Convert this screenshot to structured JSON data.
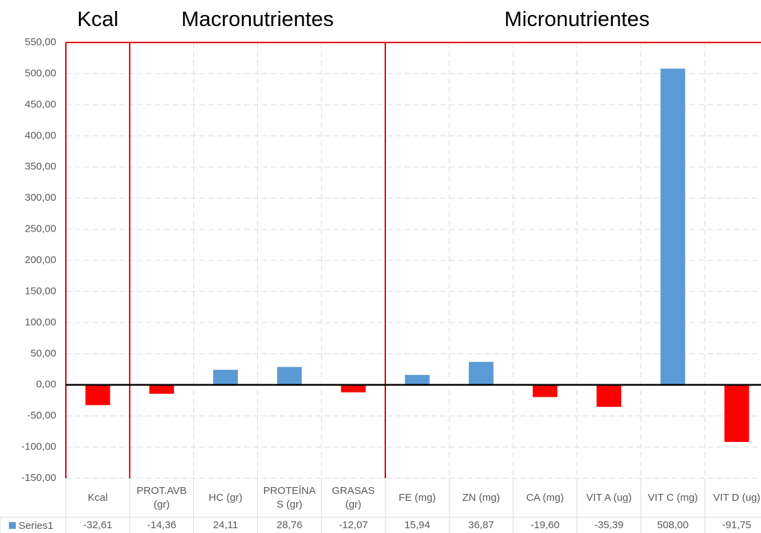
{
  "chart_data": {
    "type": "bar",
    "groups": [
      {
        "label": "Kcal"
      },
      {
        "label": "Macronutrientes"
      },
      {
        "label": "Micronutrientes"
      }
    ],
    "categories": [
      "Kcal",
      "PROT.AVB (gr)",
      "HC (gr)",
      "PROTEÍNA S (gr)",
      "GRASAS (gr)",
      "FE (mg)",
      "ZN (mg)",
      "CA (mg)",
      "VIT A (ug)",
      "VIT C (mg)",
      "VIT D (ug)"
    ],
    "series": [
      {
        "name": "Series1",
        "color": "#5b9bd5",
        "negative_color": "#ff0000",
        "values": [
          -32.61,
          -14.36,
          24.11,
          28.76,
          -12.07,
          15.94,
          36.87,
          -19.6,
          -35.39,
          508,
          -91.75
        ],
        "value_labels": [
          "-32,61",
          "-14,36",
          "24,11",
          "28,76",
          "-12,07",
          "15,94",
          "36,87",
          "-19,60",
          "-35,39",
          "508,00",
          "-91,75"
        ]
      }
    ],
    "ylim": [
      -150,
      550
    ],
    "yticks": [
      {
        "value": -150,
        "label": "-150,00"
      },
      {
        "value": -100,
        "label": "-100,00"
      },
      {
        "value": -50,
        "label": "-50,00"
      },
      {
        "value": 0,
        "label": "0,00"
      },
      {
        "value": 50,
        "label": "50,00"
      },
      {
        "value": 100,
        "label": "100,00"
      },
      {
        "value": 150,
        "label": "150,00"
      },
      {
        "value": 200,
        "label": "200,00"
      },
      {
        "value": 250,
        "label": "250,00"
      },
      {
        "value": 300,
        "label": "300,00"
      },
      {
        "value": 350,
        "label": "350,00"
      },
      {
        "value": 400,
        "label": "400,00"
      },
      {
        "value": 450,
        "label": "450,00"
      },
      {
        "value": 500,
        "label": "500,00"
      },
      {
        "value": 550,
        "label": "550,00"
      }
    ],
    "grid": true,
    "data_table": true
  }
}
